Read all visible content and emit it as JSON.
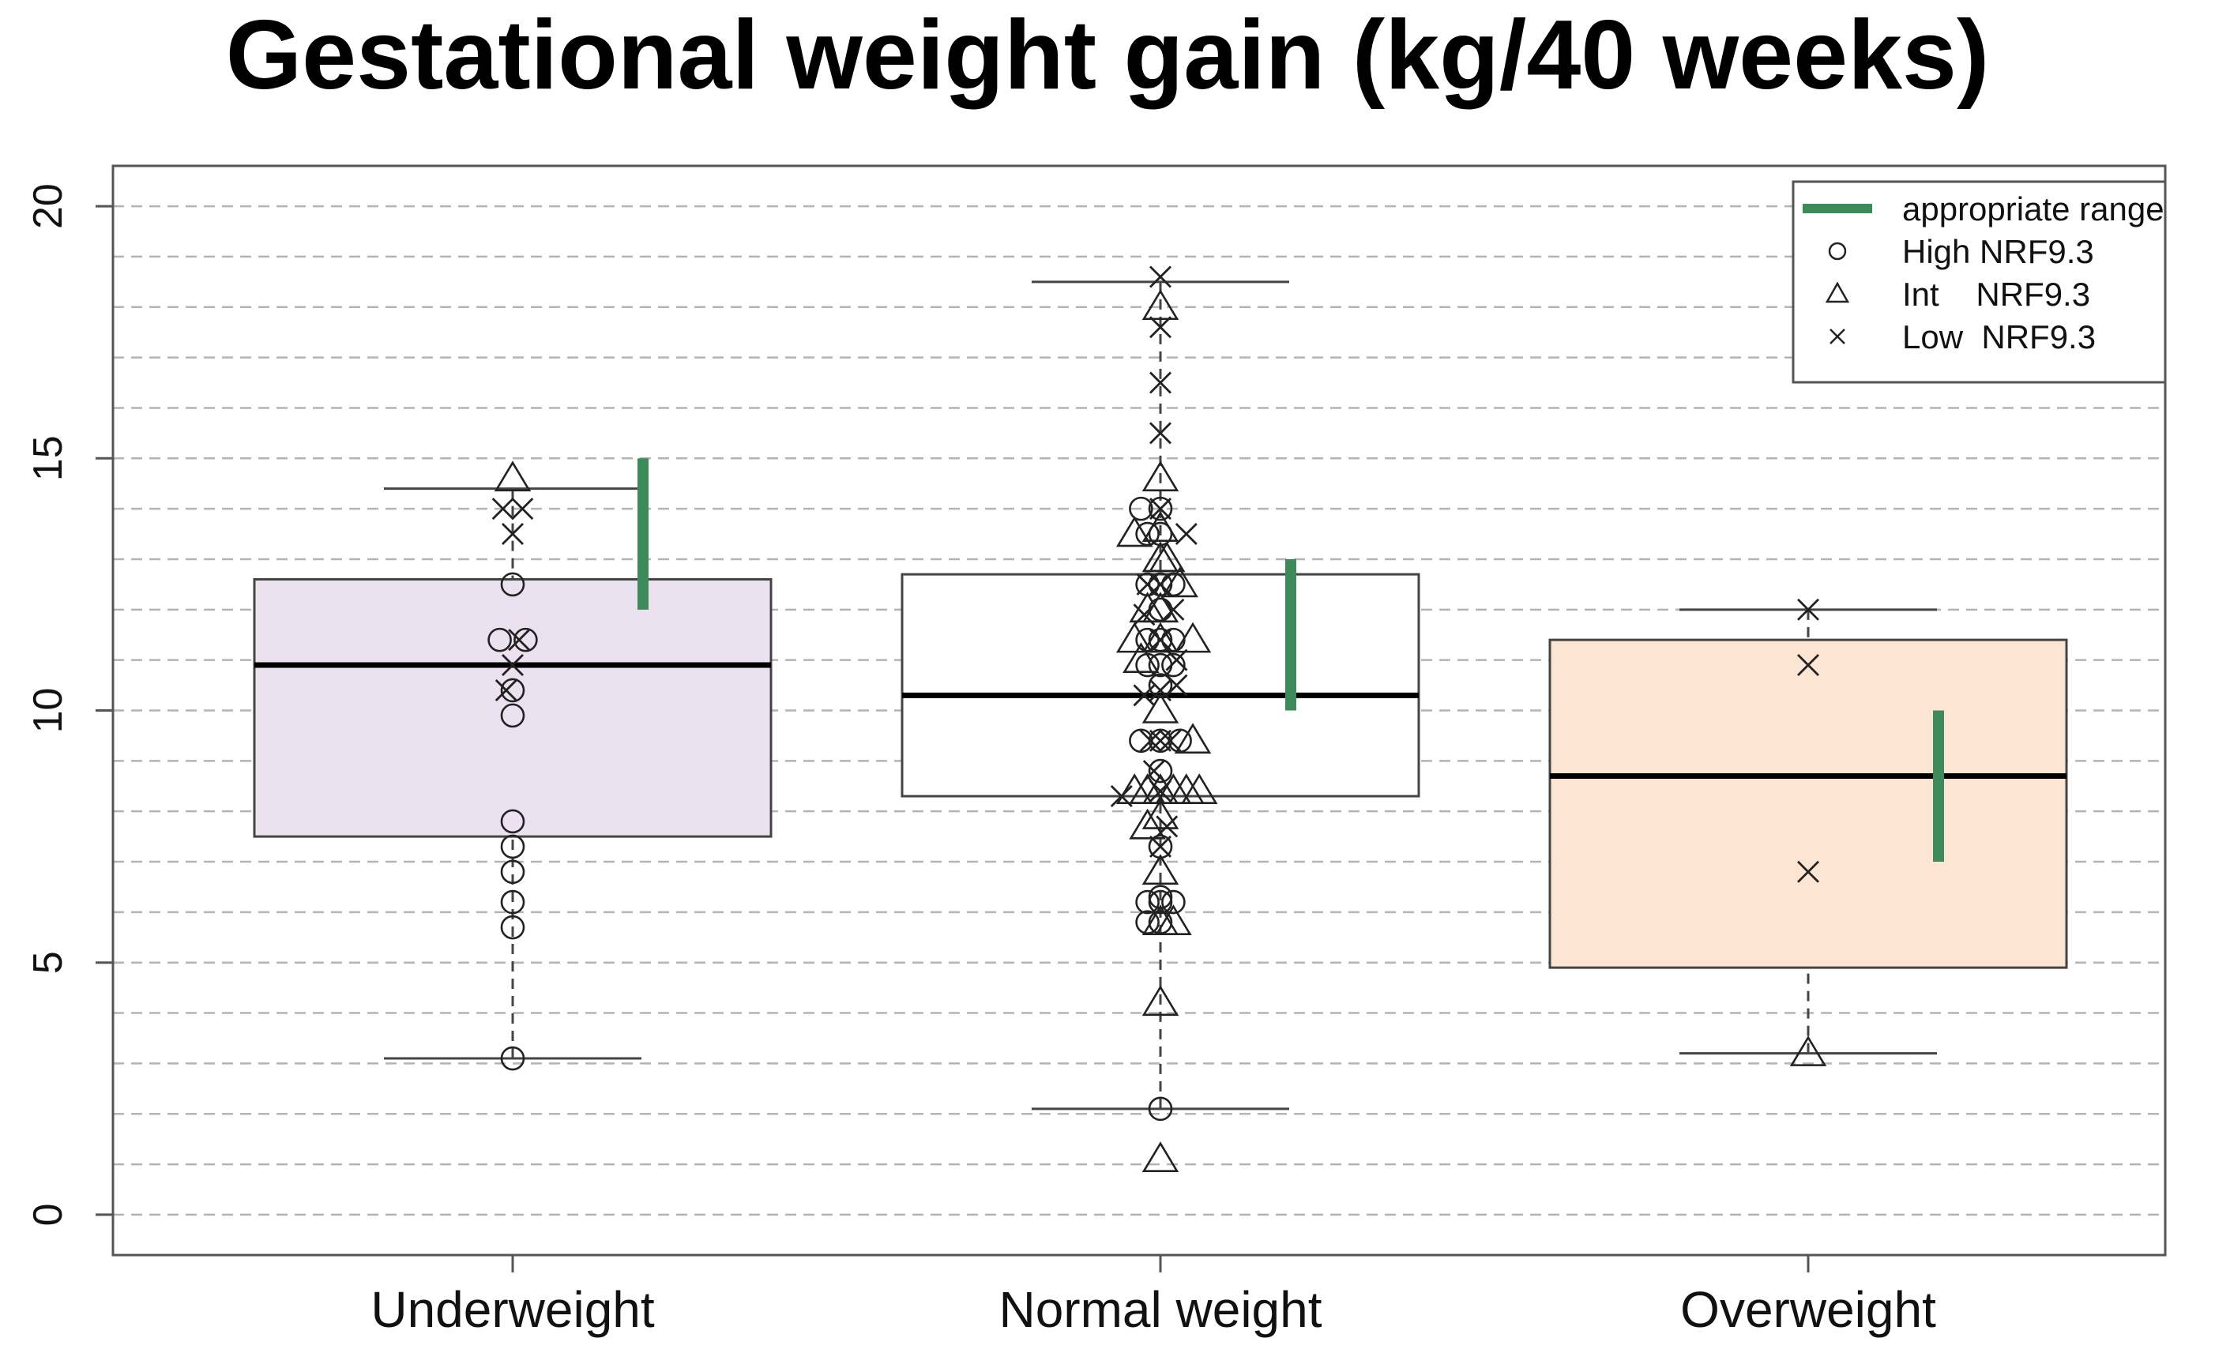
{
  "chart_data": {
    "type": "box",
    "title": "Gestational weight gain (kg/40 weeks)",
    "xlabel": "",
    "ylabel": "",
    "ylim": [
      -0.8,
      20.8
    ],
    "yticks": [
      0,
      5,
      10,
      15,
      20
    ],
    "ytick_labels": [
      "0",
      "5",
      "10",
      "15",
      "20"
    ],
    "gridlines": [
      0,
      1,
      2,
      3,
      4,
      5,
      6,
      7,
      8,
      9,
      10,
      11,
      12,
      13,
      14,
      15,
      16,
      17,
      18,
      19,
      20
    ],
    "grid": true,
    "categories": [
      "Underweight",
      "Normal weight",
      "Overweight"
    ],
    "colors": {
      "appropriate_range": "#3e8a5a",
      "underweight_fill": "#ebe1ef",
      "normal_fill": "#ffffff",
      "overweight_fill": "#fde5d3",
      "grid": "#b4b4b4",
      "axis": "#555555",
      "points": "#222222"
    },
    "boxes": [
      {
        "name": "Underweight",
        "whisker_low": 3.1,
        "q1": 7.5,
        "median": 10.9,
        "q3": 12.6,
        "whisker_high": 14.4,
        "appropriate_range": [
          12,
          15
        ]
      },
      {
        "name": "Normal weight",
        "whisker_low": 2.1,
        "q1": 8.3,
        "median": 10.3,
        "q3": 12.7,
        "whisker_high": 18.5,
        "appropriate_range": [
          10,
          13
        ]
      },
      {
        "name": "Overweight",
        "whisker_low": 3.2,
        "q1": 4.9,
        "median": 8.7,
        "q3": 11.4,
        "whisker_high": 12.0,
        "appropriate_range": [
          7,
          10
        ]
      }
    ],
    "legend": {
      "position": "top-right",
      "entries": [
        {
          "label": "appropriate range",
          "symbol": "line"
        },
        {
          "label": "High NRF9.3",
          "symbol": "circle"
        },
        {
          "label": "Int    NRF9.3",
          "symbol": "triangle"
        },
        {
          "label": "Low  NRF9.3",
          "symbol": "cross"
        }
      ]
    },
    "series": [
      {
        "name": "High NRF9.3",
        "symbol": "circle",
        "points": [
          [
            0,
            3.1
          ],
          [
            0,
            5.7
          ],
          [
            0,
            6.2
          ],
          [
            0,
            6.8
          ],
          [
            0,
            7.3
          ],
          [
            0,
            7.8
          ],
          [
            0,
            9.9
          ],
          [
            0,
            10.4
          ],
          [
            0,
            12.5
          ],
          [
            -0.04,
            11.4
          ],
          [
            0.04,
            11.4
          ],
          [
            1,
            2.1
          ],
          [
            1,
            5.8
          ],
          [
            1,
            6.2
          ],
          [
            1,
            6.3
          ],
          [
            1,
            7.3
          ],
          [
            1,
            8.8
          ],
          [
            1,
            9.4
          ],
          [
            1,
            10.5
          ],
          [
            1,
            10.9
          ],
          [
            1,
            11.4
          ],
          [
            1,
            12.0
          ],
          [
            1,
            12.5
          ],
          [
            1,
            13.5
          ],
          [
            1,
            14.0
          ],
          [
            -0.04,
            6.2
          ],
          [
            0.04,
            6.2
          ],
          [
            -0.06,
            9.4
          ],
          [
            0.06,
            9.4
          ],
          [
            -0.04,
            10.9
          ],
          [
            0.04,
            10.9
          ],
          [
            -0.04,
            12.5
          ],
          [
            0.04,
            12.5
          ],
          [
            -0.04,
            11.4
          ],
          [
            0.04,
            11.4
          ],
          [
            -0.04,
            13.5
          ],
          [
            -0.06,
            14.0
          ],
          [
            -0.04,
            5.8
          ]
        ]
      },
      {
        "name": "Int    NRF9.3",
        "symbol": "triangle",
        "points": [
          [
            0,
            14.6
          ],
          [
            1,
            1.1
          ],
          [
            1,
            4.2
          ],
          [
            1,
            5.8
          ],
          [
            1,
            6.8
          ],
          [
            1,
            7.9
          ],
          [
            1,
            8.4
          ],
          [
            1,
            10.0
          ],
          [
            1,
            11.4
          ],
          [
            1,
            12.0
          ],
          [
            1,
            13.0
          ],
          [
            1,
            13.6
          ],
          [
            1,
            14.6
          ],
          [
            1,
            18.0
          ],
          [
            -0.08,
            13.5
          ],
          [
            -0.06,
            11.0
          ],
          [
            -0.08,
            11.4
          ],
          [
            0.06,
            12.5
          ],
          [
            0.1,
            11.4
          ],
          [
            -0.08,
            8.4
          ],
          [
            -0.04,
            8.4
          ],
          [
            0.04,
            8.4
          ],
          [
            0.08,
            8.4
          ],
          [
            0.12,
            8.4
          ],
          [
            0.1,
            9.4
          ],
          [
            -0.04,
            7.7
          ],
          [
            0.04,
            5.8
          ],
          [
            -0.04,
            12.0
          ],
          [
            0.02,
            13.0
          ],
          [
            2,
            3.2
          ]
        ]
      },
      {
        "name": "Low  NRF9.3",
        "symbol": "cross",
        "points": [
          [
            0,
            10.9
          ],
          [
            0,
            13.5
          ],
          [
            -0.03,
            14.0
          ],
          [
            0.03,
            14.0
          ],
          [
            -0.02,
            10.4
          ],
          [
            0.02,
            11.4
          ],
          [
            1,
            7.3
          ],
          [
            1,
            8.4
          ],
          [
            1,
            9.4
          ],
          [
            1,
            10.4
          ],
          [
            1,
            11.4
          ],
          [
            1,
            12.5
          ],
          [
            1,
            14.0
          ],
          [
            1,
            15.5
          ],
          [
            1,
            16.5
          ],
          [
            1,
            17.6
          ],
          [
            1,
            18.6
          ],
          [
            -0.12,
            8.3
          ],
          [
            -0.03,
            9.4
          ],
          [
            0.03,
            9.4
          ],
          [
            -0.05,
            10.3
          ],
          [
            0.05,
            10.5
          ],
          [
            0.08,
            13.5
          ],
          [
            -0.04,
            12.5
          ],
          [
            0.04,
            12.0
          ],
          [
            -0.02,
            8.8
          ],
          [
            0.02,
            7.7
          ],
          [
            -0.05,
            11.9
          ],
          [
            0.05,
            11.0
          ],
          [
            2,
            6.8
          ],
          [
            2,
            10.9
          ],
          [
            2,
            12.0
          ]
        ]
      }
    ]
  }
}
